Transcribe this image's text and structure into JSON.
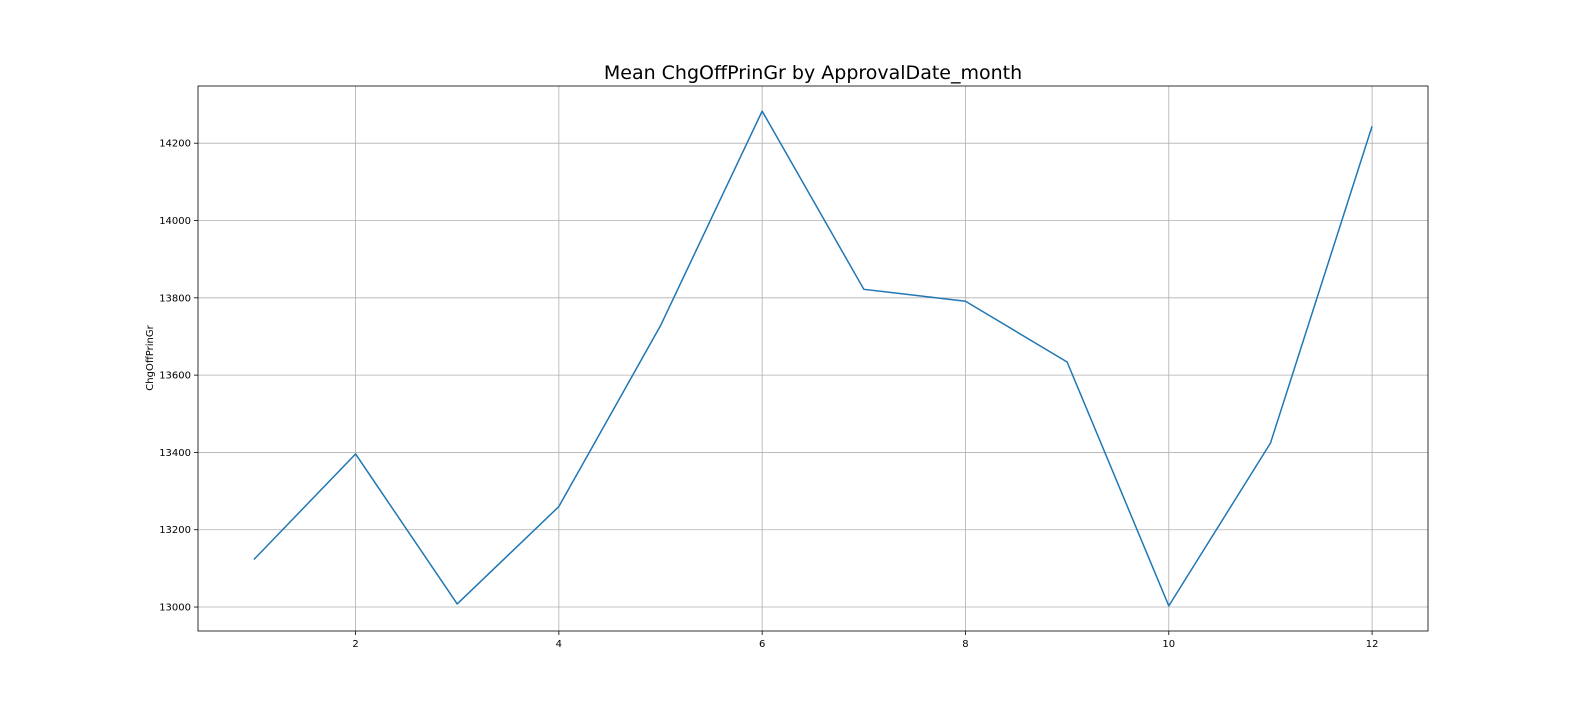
{
  "chart_data": {
    "type": "line",
    "title": "Mean ChgOffPrinGr by ApprovalDate_month",
    "xlabel": "",
    "ylabel": "ChgOffPrinGr",
    "xlim": [
      0.45,
      12.55
    ],
    "ylim": [
      12938,
      14348
    ],
    "xticks": [
      2,
      4,
      6,
      8,
      10,
      12
    ],
    "yticks": [
      13000,
      13200,
      13400,
      13600,
      13800,
      14000,
      14200
    ],
    "grid": true,
    "legend": false,
    "color": "#1f77b4",
    "x": [
      1,
      2,
      3,
      4,
      5,
      6,
      7,
      8,
      9,
      10,
      11,
      12
    ],
    "series": [
      {
        "values": [
          13123,
          13396,
          13008,
          13260,
          13728,
          14283,
          13822,
          13791,
          13634,
          13003,
          13424,
          14244
        ]
      }
    ]
  }
}
